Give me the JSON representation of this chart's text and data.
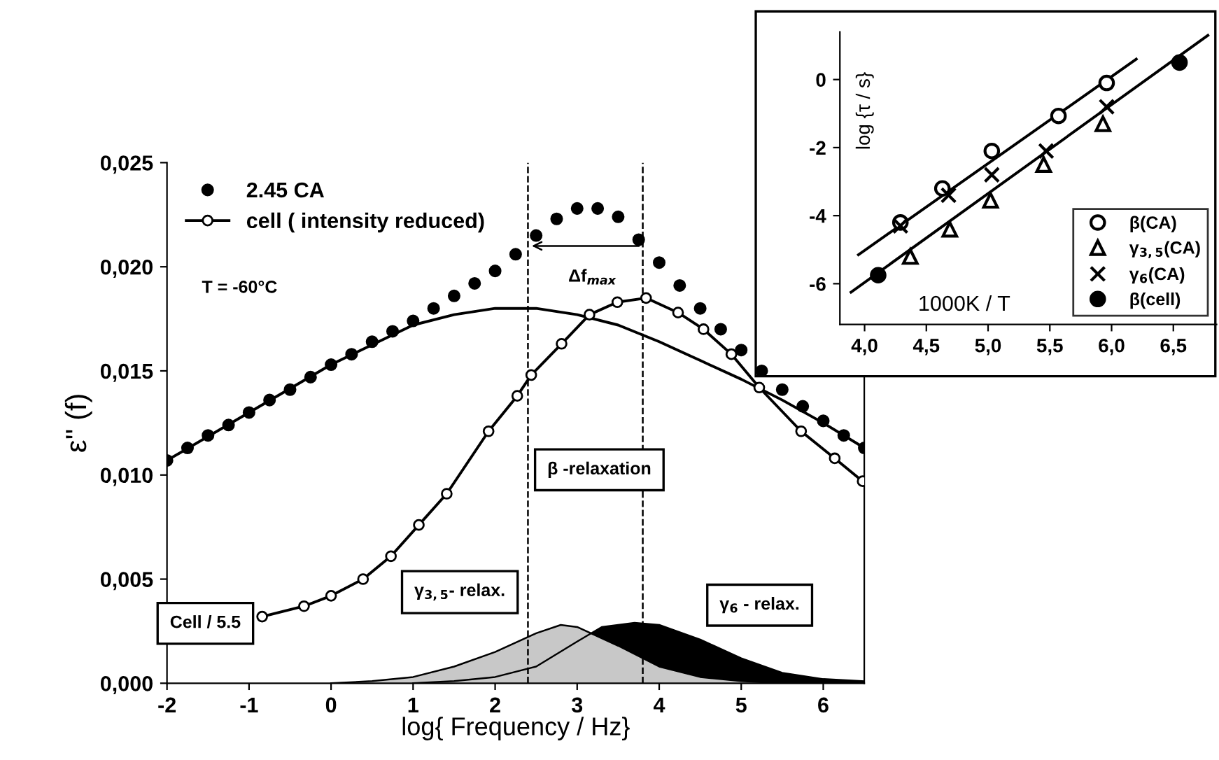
{
  "chart_data": [
    {
      "type": "line",
      "xlabel": "log{ Frequency / Hz}",
      "ylabel": "ε'' (f)",
      "xlim": [
        -2,
        6.5
      ],
      "ylim": [
        0,
        0.025
      ],
      "xticks": [
        -2,
        -1,
        0,
        1,
        2,
        3,
        4,
        5,
        6
      ],
      "yticks": [
        {
          "value": 0,
          "label": "0,000"
        },
        {
          "value": 0.005,
          "label": "0,005"
        },
        {
          "value": 0.01,
          "label": "0,010"
        },
        {
          "value": 0.015,
          "label": "0,015"
        },
        {
          "value": 0.02,
          "label": "0,020"
        },
        {
          "value": 0.025,
          "label": "0,025"
        }
      ],
      "grid": false,
      "legend": "top left",
      "series": [
        {
          "type": "area",
          "color": "#000000",
          "x": [
            1,
            1.5,
            2,
            2.5,
            3,
            3.3,
            3.7,
            4,
            4.5,
            5,
            5.5,
            6,
            6.5
          ],
          "values": [
            0.0,
            0.0001,
            0.0003,
            0.0008,
            0.002,
            0.0027,
            0.0029,
            0.0028,
            0.0021,
            0.0012,
            0.0005,
            0.0002,
            0.0001
          ]
        },
        {
          "type": "area",
          "color": "#c8c8c8",
          "x": [
            0,
            0.5,
            1,
            1.5,
            2,
            2.5,
            2.8,
            3,
            3.5,
            4,
            4.5,
            5,
            5.5
          ],
          "values": [
            0.0,
            0.0001,
            0.0003,
            0.0008,
            0.0015,
            0.0024,
            0.0028,
            0.0027,
            0.0018,
            0.0008,
            0.0003,
            0.0001,
            0.0
          ]
        },
        {
          "type": "line",
          "color": "#000000",
          "marker": "none",
          "x": [
            -2,
            -1,
            0,
            1,
            1.5,
            2,
            2.5,
            3,
            3.5,
            4,
            4.5,
            5,
            5.5,
            6,
            6.5
          ],
          "values": [
            0.0107,
            0.013,
            0.0153,
            0.0172,
            0.0177,
            0.018,
            0.018,
            0.0177,
            0.0172,
            0.0164,
            0.0155,
            0.0146,
            0.0136,
            0.0125,
            0.0113
          ]
        },
        {
          "type": "scatter",
          "name": "2.45 CA",
          "color": "#000000",
          "marker": "circle",
          "x": [
            -2,
            -1.75,
            -1.5,
            -1.25,
            -1,
            -0.75,
            -0.5,
            -0.25,
            0,
            0.25,
            0.5,
            0.75,
            1,
            1.25,
            1.5,
            1.75,
            2,
            2.25,
            2.5,
            2.75,
            3,
            3.25,
            3.5,
            3.75,
            4,
            4.25,
            4.5,
            4.75,
            5,
            5.25,
            5.5,
            5.75,
            6,
            6.25,
            6.5
          ],
          "values": [
            0.0107,
            0.0113,
            0.0119,
            0.0124,
            0.013,
            0.0136,
            0.0141,
            0.0147,
            0.0153,
            0.0158,
            0.0164,
            0.0169,
            0.0174,
            0.018,
            0.0186,
            0.0192,
            0.0198,
            0.0206,
            0.0215,
            0.0223,
            0.0228,
            0.0228,
            0.0224,
            0.0213,
            0.0202,
            0.0191,
            0.018,
            0.017,
            0.016,
            0.015,
            0.0141,
            0.0133,
            0.0126,
            0.0119,
            0.0113
          ]
        },
        {
          "type": "line",
          "name": "cell ( intensity reduced)",
          "color": "#ffffff",
          "marker": "circle",
          "x": [
            -0.84,
            -0.33,
            0.0,
            0.39,
            0.73,
            1.07,
            1.41,
            1.92,
            2.27,
            2.44,
            2.81,
            3.15,
            3.49,
            3.84,
            4.23,
            4.54,
            4.88,
            5.22,
            5.73,
            6.14,
            6.48
          ],
          "values": [
            0.0032,
            0.0037,
            0.0042,
            0.005,
            0.0061,
            0.0076,
            0.0091,
            0.0121,
            0.0138,
            0.0148,
            0.0163,
            0.0177,
            0.0183,
            0.0185,
            0.0178,
            0.017,
            0.0158,
            0.0142,
            0.0121,
            0.0108,
            0.0097
          ]
        }
      ],
      "ref_lines": [
        {
          "axis": "x",
          "value": 2.4,
          "line_style": "dashed",
          "color": "#000000"
        },
        {
          "axis": "x",
          "value": 3.8,
          "line_style": "dashed",
          "color": "#000000"
        }
      ],
      "annotations": [
        "T = -60°C",
        "Δf$_{max}$",
        "β -relaxation",
        "Cell / 5.5",
        "γ$_{3,5}$- relax.",
        "γ$_{6}$ - relax."
      ]
    },
    {
      "type": "scatter",
      "xlabel": "1000K / T",
      "ylabel": "log {τ / s}",
      "xlim": [
        3.8,
        6.85
      ],
      "ylim": [
        -7.2,
        1.4
      ],
      "xticks": [
        {
          "value": 4.0,
          "label": "4,0"
        },
        {
          "value": 4.5,
          "label": "4,5"
        },
        {
          "value": 5.0,
          "label": "5,0"
        },
        {
          "value": 5.5,
          "label": "5,5"
        },
        {
          "value": 6.0,
          "label": "6,0"
        },
        {
          "value": 6.5,
          "label": "6,5"
        }
      ],
      "yticks": [
        -6,
        -4,
        -2,
        0
      ],
      "grid": false,
      "legend": "bottom right",
      "series": [
        {
          "type": "line",
          "color": "#000000",
          "marker": "none",
          "x": [
            3.95,
            6.2
          ],
          "values": [
            -5.15,
            0.6
          ]
        },
        {
          "type": "line",
          "color": "#000000",
          "marker": "none",
          "x": [
            3.89,
            6.78
          ],
          "values": [
            -6.25,
            1.3
          ]
        },
        {
          "name": "β(CA)",
          "color": "#ffffff",
          "marker": "circle",
          "x": [
            4.29,
            4.63,
            5.03,
            5.57,
            5.96
          ],
          "values": [
            -4.2,
            -3.2,
            -2.1,
            -1.07,
            -0.1
          ]
        },
        {
          "name": "γ$_{3,5}$(CA)",
          "color": "#ffffff",
          "marker": "triangle",
          "x": [
            4.37,
            4.69,
            5.02,
            5.45,
            5.93
          ],
          "values": [
            -5.2,
            -4.4,
            -3.55,
            -2.5,
            -1.3
          ]
        },
        {
          "name": "γ$_{6}$(CA)",
          "color": "#000000",
          "marker": "cross",
          "x": [
            4.29,
            4.68,
            5.03,
            5.47,
            5.96
          ],
          "values": [
            -4.3,
            -3.4,
            -2.8,
            -2.1,
            -0.8
          ]
        },
        {
          "name": "β(cell)",
          "color": "#000000",
          "marker": "circle",
          "x": [
            4.11,
            6.55
          ],
          "values": [
            -5.75,
            0.5
          ]
        }
      ]
    }
  ]
}
